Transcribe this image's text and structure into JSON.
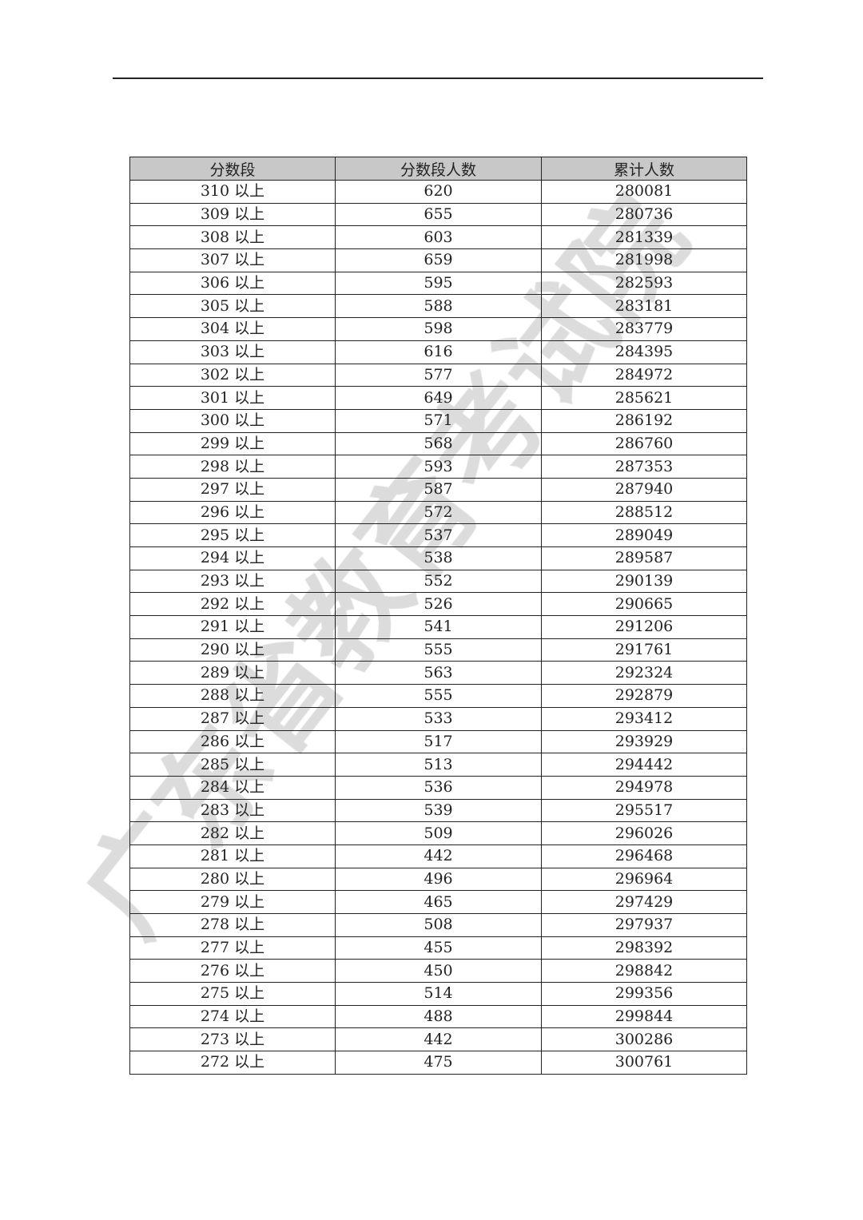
{
  "watermark": {
    "text": "广东省教育考试院",
    "color": "#c4c4c4"
  },
  "table": {
    "headers": [
      "分数段",
      "分数段人数",
      "累计人数"
    ],
    "header_bg": "#c8c8c8",
    "suffix": "以上",
    "rows": [
      [
        "310 以上",
        "620",
        "280081"
      ],
      [
        "309 以上",
        "655",
        "280736"
      ],
      [
        "308 以上",
        "603",
        "281339"
      ],
      [
        "307 以上",
        "659",
        "281998"
      ],
      [
        "306 以上",
        "595",
        "282593"
      ],
      [
        "305 以上",
        "588",
        "283181"
      ],
      [
        "304 以上",
        "598",
        "283779"
      ],
      [
        "303 以上",
        "616",
        "284395"
      ],
      [
        "302 以上",
        "577",
        "284972"
      ],
      [
        "301 以上",
        "649",
        "285621"
      ],
      [
        "300 以上",
        "571",
        "286192"
      ],
      [
        "299 以上",
        "568",
        "286760"
      ],
      [
        "298 以上",
        "593",
        "287353"
      ],
      [
        "297 以上",
        "587",
        "287940"
      ],
      [
        "296 以上",
        "572",
        "288512"
      ],
      [
        "295 以上",
        "537",
        "289049"
      ],
      [
        "294 以上",
        "538",
        "289587"
      ],
      [
        "293 以上",
        "552",
        "290139"
      ],
      [
        "292 以上",
        "526",
        "290665"
      ],
      [
        "291 以上",
        "541",
        "291206"
      ],
      [
        "290 以上",
        "555",
        "291761"
      ],
      [
        "289 以上",
        "563",
        "292324"
      ],
      [
        "288 以上",
        "555",
        "292879"
      ],
      [
        "287 以上",
        "533",
        "293412"
      ],
      [
        "286 以上",
        "517",
        "293929"
      ],
      [
        "285 以上",
        "513",
        "294442"
      ],
      [
        "284 以上",
        "536",
        "294978"
      ],
      [
        "283 以上",
        "539",
        "295517"
      ],
      [
        "282 以上",
        "509",
        "296026"
      ],
      [
        "281 以上",
        "442",
        "296468"
      ],
      [
        "280 以上",
        "496",
        "296964"
      ],
      [
        "279 以上",
        "465",
        "297429"
      ],
      [
        "278 以上",
        "508",
        "297937"
      ],
      [
        "277 以上",
        "455",
        "298392"
      ],
      [
        "276 以上",
        "450",
        "298842"
      ],
      [
        "275 以上",
        "514",
        "299356"
      ],
      [
        "274 以上",
        "488",
        "299844"
      ],
      [
        "273 以上",
        "442",
        "300286"
      ],
      [
        "272 以上",
        "475",
        "300761"
      ]
    ]
  }
}
